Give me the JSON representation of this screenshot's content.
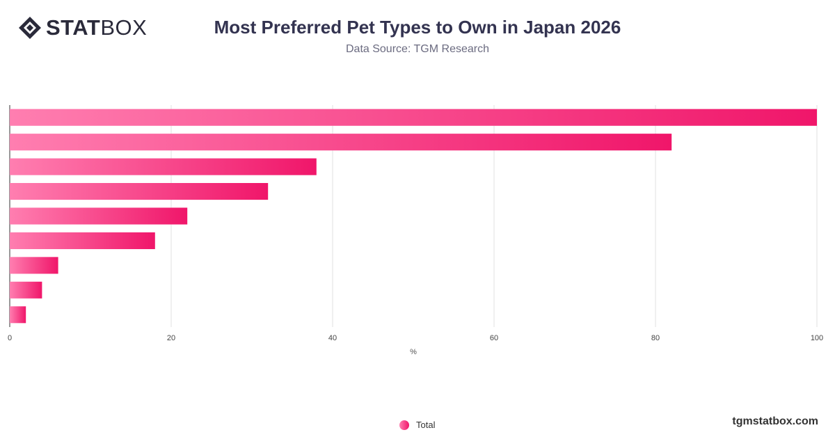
{
  "brand": {
    "bold": "STAT",
    "light": "BOX"
  },
  "header": {
    "title": "Most Preferred Pet Types to Own in Japan 2026",
    "subtitle": "Data Source: TGM Research"
  },
  "footer": {
    "site": "tgmstatbox.com"
  },
  "colors": {
    "bar_start": "#ff7eb0",
    "bar_end": "#f0166a",
    "grid": "#e2e2e2"
  },
  "chart_data": {
    "type": "bar",
    "orientation": "horizontal",
    "categories": [
      "",
      "",
      "",
      "",
      "",
      "",
      "",
      "",
      ""
    ],
    "series": [
      {
        "name": "Total",
        "values": [
          100,
          82,
          38,
          32,
          22,
          18,
          6,
          4,
          2
        ]
      }
    ],
    "xlabel": "%",
    "xlim": [
      0,
      100
    ],
    "xticks": [
      0,
      20,
      40,
      60,
      80,
      100
    ],
    "grid": true,
    "legend_position": "bottom"
  }
}
